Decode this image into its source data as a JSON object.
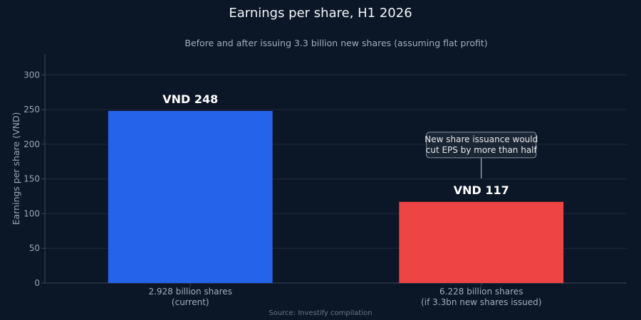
{
  "chart_data": {
    "type": "bar",
    "title": "Earnings per share, H1 2026",
    "subtitle": "Before and after issuing 3.3 billion new shares (assuming flat profit)",
    "ylabel": "Earnings per share (VND)",
    "xlabel": "",
    "ylim": [
      0,
      330
    ],
    "yticks": [
      0,
      50,
      100,
      150,
      200,
      250,
      300
    ],
    "grid": true,
    "categories": [
      [
        "2.928 billion shares",
        "(current)"
      ],
      [
        "6.228 billion shares",
        "(if 3.3bn new shares issued)"
      ]
    ],
    "values": [
      248,
      117
    ],
    "data_labels": [
      "VND 248",
      "VND 117"
    ],
    "colors": [
      "#2563eb",
      "#ef4444"
    ],
    "annotation": {
      "lines": [
        "New share issuance would",
        "cut EPS by more than half"
      ],
      "target_index": 1
    },
    "source": "Source: Investify compilation"
  }
}
